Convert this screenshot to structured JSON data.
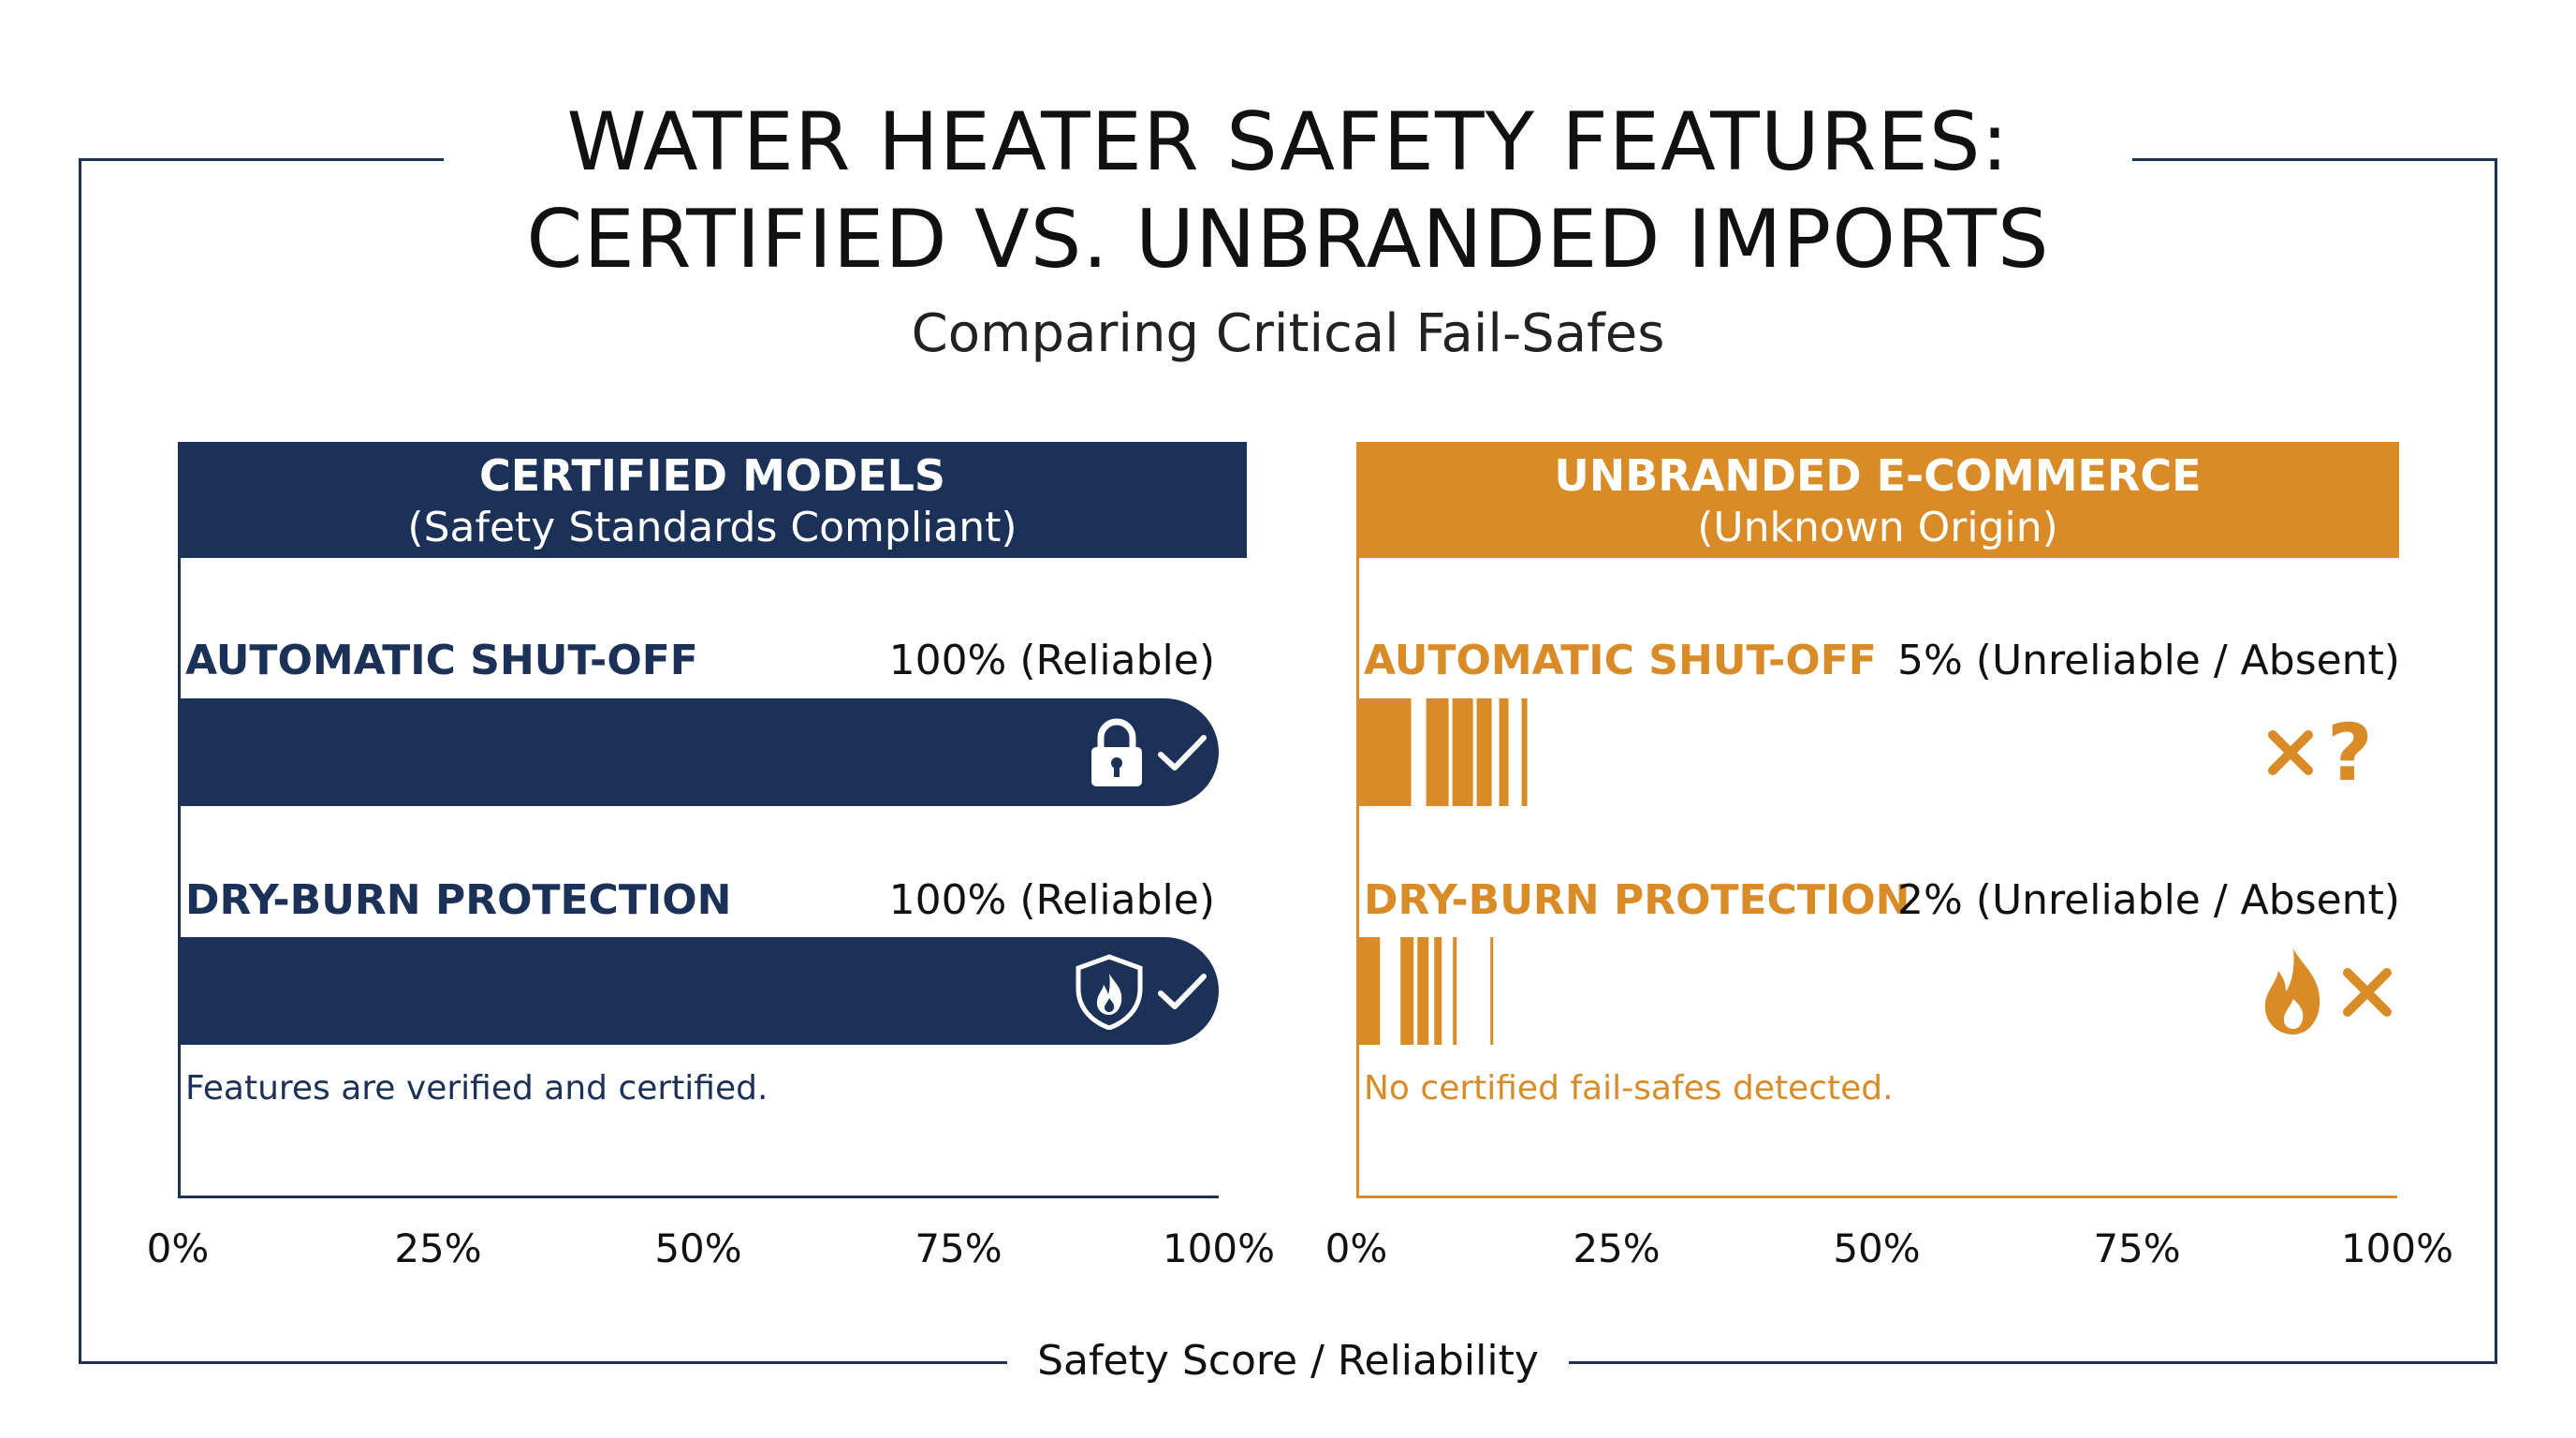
{
  "colors": {
    "certified": "#1b3158",
    "unbranded": "#d88b27",
    "frame": "#1b3158"
  },
  "title_line1": "WATER HEATER SAFETY FEATURES:",
  "title_line2": "CERTIFIED VS. UNBRANDED IMPORTS",
  "subtitle": "Comparing Critical Fail-Safes",
  "axis_title": "Safety Score / Reliability",
  "chart_data": [
    {
      "type": "bar",
      "orientation": "horizontal",
      "panel_title": "CERTIFIED MODELS",
      "panel_subtitle": "(Safety Standards Compliant)",
      "categories": [
        "AUTOMATIC SHUT-OFF",
        "DRY-BURN PROTECTION"
      ],
      "values": [
        100,
        100
      ],
      "value_labels": [
        "100% (Reliable)",
        "100% (Reliable)"
      ],
      "icons": [
        [
          "lock-icon",
          "check-icon"
        ],
        [
          "shield-flame-icon",
          "check-icon"
        ]
      ],
      "note": "Features are verified and certified.",
      "x_ticks": [
        "0%",
        "25%",
        "50%",
        "75%",
        "100%"
      ],
      "xlim": [
        0,
        100
      ],
      "color": "#1b3158"
    },
    {
      "type": "bar",
      "orientation": "horizontal",
      "panel_title": "UNBRANDED E-COMMERCE",
      "panel_subtitle": "(Unknown Origin)",
      "categories": [
        "AUTOMATIC SHUT-OFF",
        "DRY-BURN PROTECTION"
      ],
      "values": [
        5,
        2
      ],
      "value_labels": [
        "5% (Unreliable / Absent)",
        "2% (Unreliable / Absent)"
      ],
      "icons": [
        [
          "cross-icon",
          "question-icon"
        ],
        [
          "flame-icon",
          "cross-icon"
        ]
      ],
      "note": "No certified fail-safes detected.",
      "x_ticks": [
        "0%",
        "25%",
        "50%",
        "75%",
        "100%"
      ],
      "xlim": [
        0,
        100
      ],
      "color": "#d88b27"
    }
  ]
}
